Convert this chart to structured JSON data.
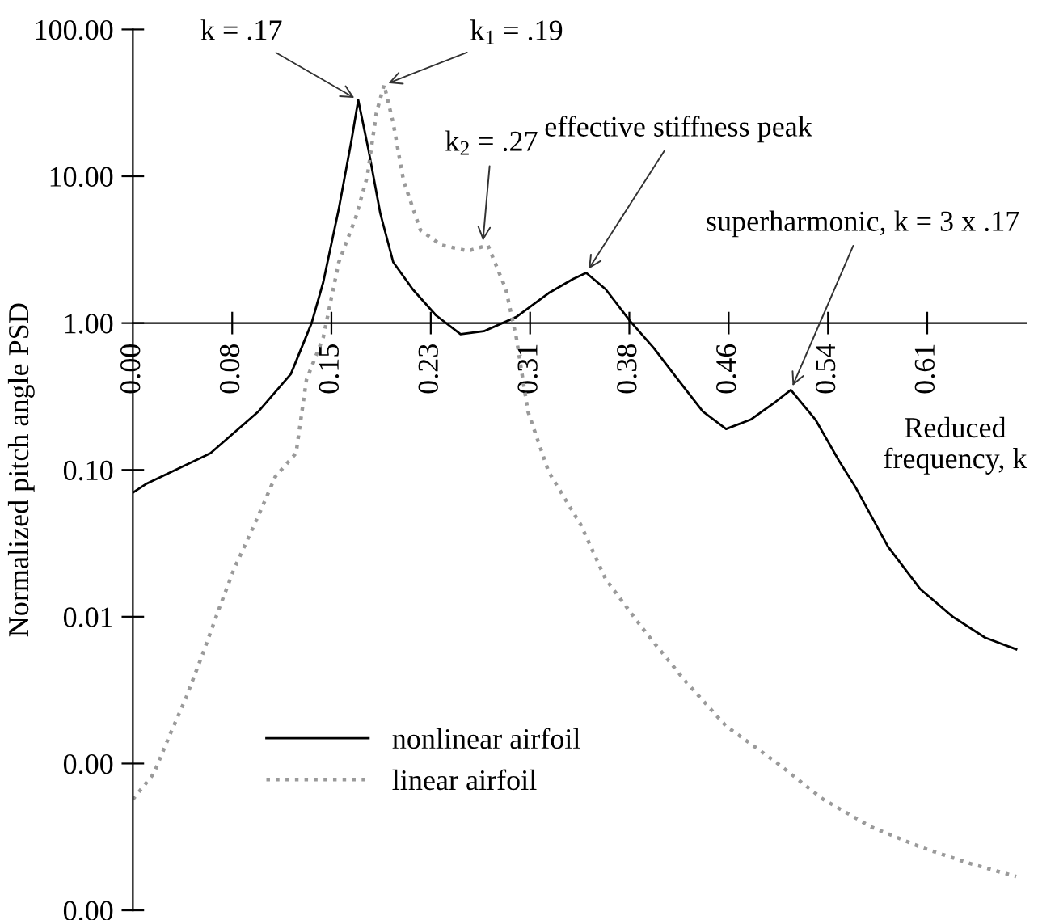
{
  "chart_data": {
    "type": "line",
    "xlabel": "Reduced\nfrequency, k",
    "ylabel": "Normalized pitch angle PSD",
    "log": "y",
    "xlim": [
      0,
      0.69
    ],
    "ylim": [
      0.0001,
      100
    ],
    "xticks": [
      {
        "value": 0,
        "label": "0.00"
      },
      {
        "value": 0.0767,
        "label": "0.08"
      },
      {
        "value": 0.1533,
        "label": "0.15"
      },
      {
        "value": 0.23,
        "label": "0.23"
      },
      {
        "value": 0.3067,
        "label": "0.31"
      },
      {
        "value": 0.3833,
        "label": "0.38"
      },
      {
        "value": 0.46,
        "label": "0.46"
      },
      {
        "value": 0.5367,
        "label": "0.54"
      },
      {
        "value": 0.6133,
        "label": "0.61"
      }
    ],
    "yticks": [
      {
        "value": 100,
        "label": "100.00"
      },
      {
        "value": 10,
        "label": "10.00"
      },
      {
        "value": 1,
        "label": "1.00"
      },
      {
        "value": 0.1,
        "label": "0.10"
      },
      {
        "value": 0.01,
        "label": "0.01"
      },
      {
        "value": 0.001,
        "label": "0.00"
      },
      {
        "value": 0.0001,
        "label": "0.00"
      }
    ],
    "grid": false,
    "legend": "bottom left",
    "series": [
      {
        "name": "nonlinear airfoil",
        "color": "#000000",
        "line_style": "solid",
        "x": [
          0,
          0.01,
          0.06,
          0.097,
          0.122,
          0.138,
          0.147,
          0.159,
          0.169,
          0.174,
          0.182,
          0.191,
          0.201,
          0.216,
          0.234,
          0.253,
          0.271,
          0.296,
          0.321,
          0.34,
          0.35,
          0.365,
          0.384,
          0.402,
          0.421,
          0.44,
          0.458,
          0.477,
          0.496,
          0.508,
          0.527,
          0.545,
          0.558,
          0.583,
          0.608,
          0.633,
          0.658,
          0.682
        ],
        "values": [
          0.07,
          0.08,
          0.13,
          0.25,
          0.45,
          1.0,
          1.9,
          6.0,
          18,
          33,
          15,
          5.6,
          2.6,
          1.7,
          1.13,
          0.84,
          0.88,
          1.1,
          1.6,
          2.0,
          2.2,
          1.7,
          1.03,
          0.68,
          0.41,
          0.25,
          0.19,
          0.22,
          0.29,
          0.35,
          0.22,
          0.116,
          0.076,
          0.03,
          0.0154,
          0.01,
          0.0072,
          0.006
        ]
      },
      {
        "name": "linear airfoil",
        "color": "#9a9a9a",
        "line_style": "dotted",
        "x": [
          0,
          0.016,
          0.029,
          0.041,
          0.054,
          0.066,
          0.078,
          0.097,
          0.11,
          0.126,
          0.134,
          0.147,
          0.159,
          0.172,
          0.181,
          0.188,
          0.194,
          0.201,
          0.209,
          0.222,
          0.238,
          0.259,
          0.274,
          0.288,
          0.296,
          0.305,
          0.321,
          0.346,
          0.365,
          0.396,
          0.427,
          0.458,
          0.496,
          0.533,
          0.57,
          0.608,
          0.645,
          0.682
        ],
        "values": [
          0.00057,
          0.00085,
          0.0016,
          0.0028,
          0.0056,
          0.011,
          0.021,
          0.049,
          0.09,
          0.13,
          0.41,
          0.8,
          2.6,
          5.2,
          10,
          27,
          42,
          23,
          9.3,
          4.3,
          3.4,
          3.1,
          3.4,
          1.7,
          0.8,
          0.25,
          0.097,
          0.042,
          0.018,
          0.0078,
          0.0036,
          0.0018,
          0.00103,
          0.00057,
          0.00037,
          0.00027,
          0.00021,
          0.00017
        ]
      }
    ],
    "annotations": [
      {
        "text": "k = .17",
        "x": 0.174,
        "y": 33
      },
      {
        "text": "k$_{1}$ = .19",
        "x": 0.194,
        "y": 42
      },
      {
        "text": "k$_{2}$ = .27",
        "x": 0.27,
        "y": 3.4
      },
      {
        "text": "effective stiffness peak",
        "x": 0.35,
        "y": 2.2
      },
      {
        "text": "superharmonic, k = 3 x .17",
        "x": 0.508,
        "y": 0.35
      }
    ]
  }
}
